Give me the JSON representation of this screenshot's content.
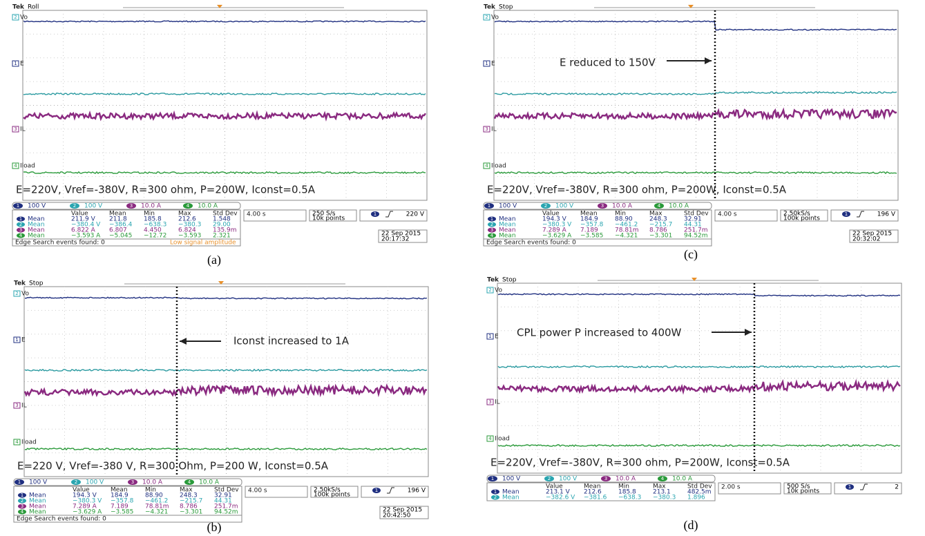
{
  "panels": [
    {
      "brand": "Tek",
      "mode": "Roll",
      "channels": [
        {
          "num": "2",
          "label": "Vo"
        },
        {
          "num": "1",
          "label": "E"
        },
        {
          "num": "3",
          "label": "IL"
        },
        {
          "num": "4",
          "label": "Iload"
        }
      ],
      "condition": "E=220V, Vref=-380V, R=300 ohm, P=200W, Iconst=0.5A",
      "scales": [
        {
          "num": "1",
          "text": "100 V"
        },
        {
          "num": "2",
          "text": "100 V"
        },
        {
          "num": "3",
          "text": "10.0 A"
        },
        {
          "num": "4",
          "text": "10.0 A"
        }
      ],
      "table": {
        "header": [
          "Value",
          "Mean",
          "Min",
          "Max",
          "Std Dev"
        ],
        "rows": [
          {
            "num": "1",
            "stat": "Mean",
            "cells": [
              "211.9 V",
              "211.8",
              "185.8",
              "212.6",
              "1.548"
            ]
          },
          {
            "num": "2",
            "stat": "Mean",
            "cells": [
              "−380.4 V",
              "−386.4",
              "−638.3",
              "−380.3",
              "29.00"
            ]
          },
          {
            "num": "3",
            "stat": "Mean",
            "cells": [
              "6.822 A",
              "6.807",
              "4.450",
              "6.824",
              "135.9m"
            ]
          },
          {
            "num": "4",
            "stat": "Mean",
            "cells": [
              "−3.593 A",
              "−5.045",
              "−12.72",
              "−3.593",
              "2.321"
            ]
          }
        ]
      },
      "timebase": "4.00 s",
      "sample_rate": "250 S/s",
      "record": "10k points",
      "trigger": {
        "num": "1",
        "level": "220 V"
      },
      "date": "22 Sep 2015",
      "time": "20:17:32",
      "edge_search": "Edge Search events found: 0",
      "warning": "Low signal amplitude",
      "caption": "(a)"
    },
    {
      "brand": "Tek",
      "mode": "Stop",
      "channels": [
        {
          "num": "2",
          "label": "Vo"
        },
        {
          "num": "1",
          "label": "E"
        },
        {
          "num": "3",
          "label": "IL"
        },
        {
          "num": "4",
          "label": "Iload"
        }
      ],
      "condition": "E=220V, Vref=-380V, R=300 ohm, P=200W, Iconst=0.5A",
      "annotation": "E reduced to 150V",
      "scales": [
        {
          "num": "1",
          "text": "100 V"
        },
        {
          "num": "2",
          "text": "100 V"
        },
        {
          "num": "3",
          "text": "10.0 A"
        },
        {
          "num": "4",
          "text": "10.0 A"
        }
      ],
      "table": {
        "header": [
          "Value",
          "Mean",
          "Min",
          "Max",
          "Std Dev"
        ],
        "rows": [
          {
            "num": "1",
            "stat": "Mean",
            "cells": [
              "194.3 V",
              "184.9",
              "88.90",
              "248.3",
              "32.91"
            ]
          },
          {
            "num": "2",
            "stat": "Mean",
            "cells": [
              "−380.3 V",
              "−357.8",
              "−461.2",
              "−215.7",
              "44.31"
            ]
          },
          {
            "num": "3",
            "stat": "Mean",
            "cells": [
              "7.289 A",
              "7.189",
              "78.81m",
              "8.786",
              "251.7m"
            ]
          },
          {
            "num": "4",
            "stat": "Mean",
            "cells": [
              "−3.629 A",
              "−3.585",
              "−4.321",
              "−3.301",
              "94.52m"
            ]
          }
        ]
      },
      "timebase": "4.00 s",
      "sample_rate": "2.50kS/s",
      "record": "100k points",
      "trigger": {
        "num": "1",
        "level": "196 V"
      },
      "date": "22 Sep 2015",
      "time": "20:32:02",
      "edge_search": "Edge Search events found: 0",
      "caption": "(c)"
    },
    {
      "brand": "Tek",
      "mode": "Stop",
      "channels": [
        {
          "num": "2",
          "label": "Vo"
        },
        {
          "num": "1",
          "label": "E"
        },
        {
          "num": "3",
          "label": "IL"
        },
        {
          "num": "4",
          "label": "Iload"
        }
      ],
      "condition": "E=220 V, Vref=-380 V, R=300 Ohm, P=200 W, Iconst=0.5A",
      "annotation": "Iconst increased to 1A",
      "scales": [
        {
          "num": "1",
          "text": "100 V"
        },
        {
          "num": "2",
          "text": "100 V"
        },
        {
          "num": "3",
          "text": "10.0 A"
        },
        {
          "num": "4",
          "text": "10.0 A"
        }
      ],
      "table": {
        "header": [
          "Value",
          "Mean",
          "Min",
          "Max",
          "Std Dev"
        ],
        "rows": [
          {
            "num": "1",
            "stat": "Mean",
            "cells": [
              "194.3 V",
              "184.9",
              "88.90",
              "248.3",
              "32.91"
            ]
          },
          {
            "num": "2",
            "stat": "Mean",
            "cells": [
              "−380.3 V",
              "−357.8",
              "−461.2",
              "−215.7",
              "44.31"
            ]
          },
          {
            "num": "3",
            "stat": "Mean",
            "cells": [
              "7.289 A",
              "7.189",
              "78.81m",
              "8.786",
              "251.7m"
            ]
          },
          {
            "num": "4",
            "stat": "Mean",
            "cells": [
              "−3.629 A",
              "−3.585",
              "−4.321",
              "−3.301",
              "94.52m"
            ]
          }
        ]
      },
      "timebase": "4.00 s",
      "sample_rate": "2.50kS/s",
      "record": "100k points",
      "trigger": {
        "num": "1",
        "level": "196 V"
      },
      "date": "22 Sep 2015",
      "time": "20:42:50",
      "edge_search": "Edge Search events found: 0",
      "caption": "(b)"
    },
    {
      "brand": "Tek",
      "mode": "Stop",
      "channels": [
        {
          "num": "2",
          "label": "Vo"
        },
        {
          "num": "1",
          "label": "E"
        },
        {
          "num": "3",
          "label": "IL"
        },
        {
          "num": "4",
          "label": "Iload"
        }
      ],
      "condition": "E=220V, Vref=-380V, R=300 ohm, P=200W, Iconst=0.5A",
      "annotation": "CPL power P increased to 400W",
      "scales": [
        {
          "num": "1",
          "text": "100 V"
        },
        {
          "num": "2",
          "text": "100 V"
        },
        {
          "num": "3",
          "text": "10.0 A"
        },
        {
          "num": "4",
          "text": "10.0 A"
        }
      ],
      "table": {
        "header": [
          "Value",
          "Mean",
          "Min",
          "Max",
          "Std Dev"
        ],
        "rows": [
          {
            "num": "1",
            "stat": "Mean",
            "cells": [
              "213.1 V",
              "212.6",
              "185.8",
              "213.1",
              "482.5m"
            ]
          },
          {
            "num": "2",
            "stat": "Mean",
            "cells": [
              "−382.6 V",
              "−381.6",
              "−638.3",
              "−380.3",
              "1.896"
            ]
          }
        ]
      },
      "timebase": "2.00 s",
      "sample_rate": "500 S/s",
      "record": "10k points",
      "trigger": {
        "num": "1",
        "level": "2"
      },
      "caption": "(d)"
    }
  ]
}
